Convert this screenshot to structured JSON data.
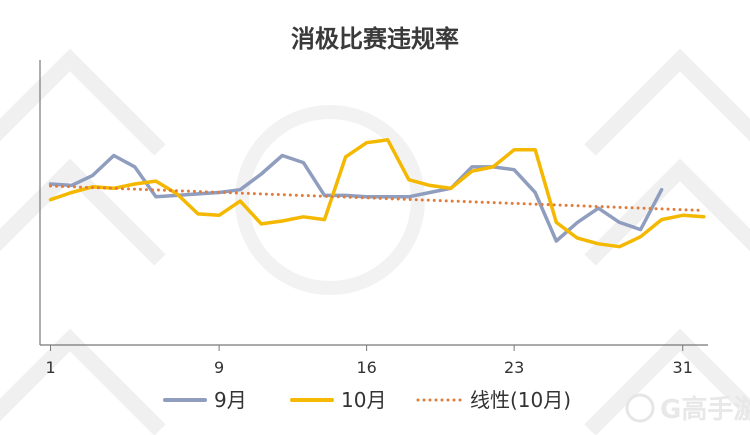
{
  "chart_data": {
    "type": "line",
    "title": "消极比赛违规率",
    "x_ticks": [
      1,
      9,
      16,
      23,
      31
    ],
    "xlim": [
      0.5,
      32.2
    ],
    "ylim": [
      0,
      100
    ],
    "grid": false,
    "legend_position": "bottom",
    "series": [
      {
        "name": "9月",
        "color": "#8f9dbe",
        "x": [
          1,
          2,
          3,
          4,
          5,
          6,
          7,
          8,
          9,
          10,
          11,
          12,
          13,
          14,
          15,
          16,
          17,
          18,
          19,
          20,
          21,
          22,
          23,
          24,
          25,
          26,
          27,
          28,
          29,
          30
        ],
        "values": [
          56.5,
          56.0,
          59.5,
          66.5,
          62.5,
          52.0,
          52.5,
          53.0,
          53.5,
          54.5,
          60.0,
          66.5,
          64.0,
          52.5,
          52.5,
          52.0,
          52.0,
          52.0,
          53.5,
          55.0,
          62.5,
          62.5,
          61.5,
          53.5,
          36.5,
          43.0,
          48.0,
          43.0,
          40.5,
          54.5
        ]
      },
      {
        "name": "10月",
        "color": "#f5b800",
        "x": [
          1,
          2,
          3,
          4,
          5,
          6,
          7,
          8,
          9,
          10,
          11,
          12,
          13,
          14,
          15,
          16,
          17,
          18,
          19,
          20,
          21,
          22,
          23,
          24,
          25,
          26,
          27,
          28,
          29,
          30,
          31,
          32
        ],
        "values": [
          51.0,
          53.5,
          55.5,
          55.0,
          56.5,
          57.5,
          53.0,
          46.0,
          45.5,
          50.5,
          42.5,
          43.5,
          45.0,
          44.0,
          66.0,
          71.0,
          72.0,
          58.0,
          56.0,
          55.0,
          61.0,
          62.5,
          68.5,
          68.5,
          43.0,
          37.5,
          35.5,
          34.5,
          38.0,
          44.0,
          45.5,
          45.0
        ]
      },
      {
        "name": "线性(10月)",
        "color": "#e07b39",
        "style": "dotted",
        "x": [
          1,
          32
        ],
        "values": [
          55.8,
          47.2
        ]
      }
    ]
  },
  "watermark": {
    "text": "G高手游"
  }
}
